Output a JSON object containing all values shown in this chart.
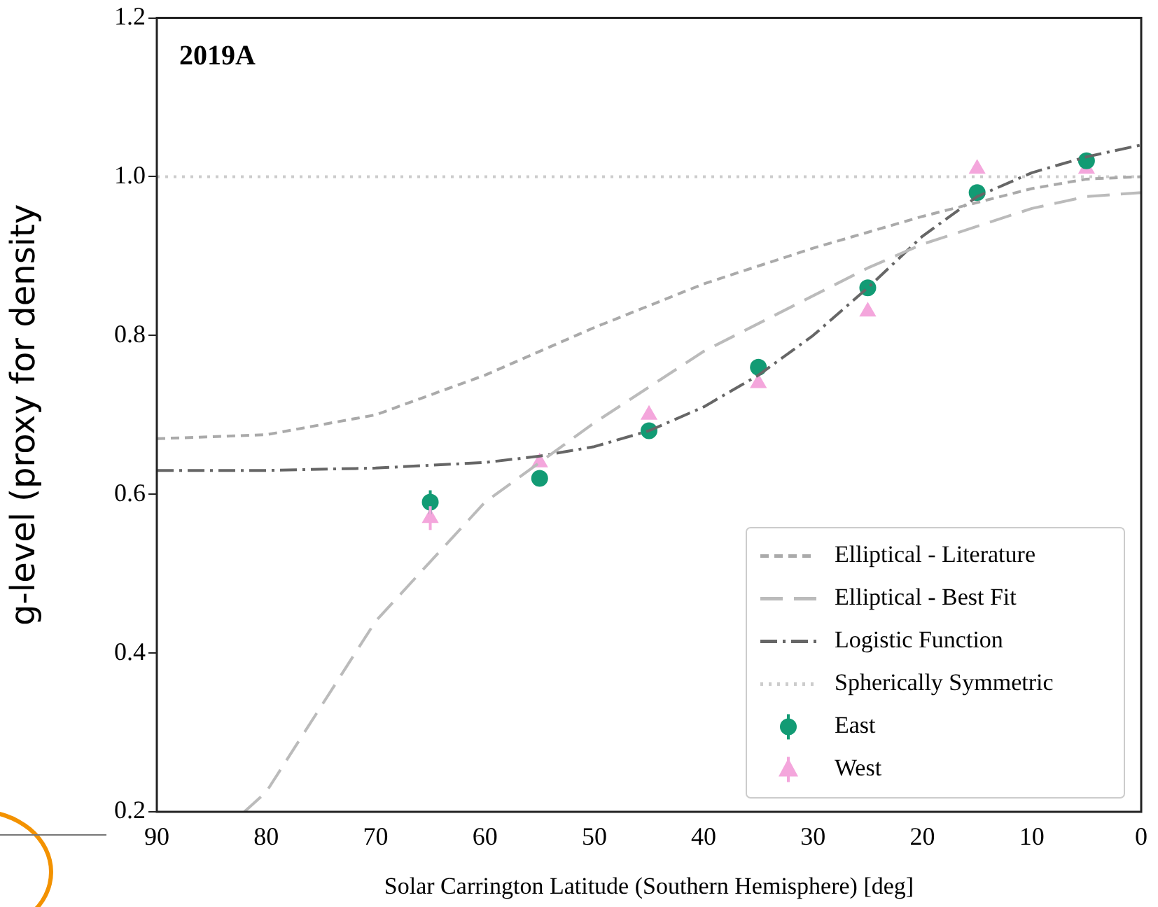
{
  "chart_data": {
    "type": "line",
    "title": "2019A",
    "xlabel": "Solar Carrington Latitude (Southern Hemisphere) [deg]",
    "ylabel": "g-level (proxy for density",
    "xlim": [
      90,
      0
    ],
    "xticks": [
      90,
      80,
      70,
      60,
      50,
      40,
      30,
      20,
      10,
      0
    ],
    "ylim": [
      0.2,
      1.2
    ],
    "yticks": [
      0.2,
      0.4,
      0.6,
      0.8,
      {
        "value": 1,
        "label": "1.0"
      },
      1.2
    ],
    "grid": false,
    "legend": "bottom right",
    "series": [
      {
        "name": "Elliptical - Literature",
        "type": "line",
        "color": "#aaaaaa",
        "line_style": "dashed",
        "marker": "none",
        "x": [
          90,
          80,
          70,
          60,
          50,
          40,
          30,
          20,
          10,
          5,
          0
        ],
        "values": [
          0.67,
          0.675,
          0.7,
          0.75,
          0.81,
          0.865,
          0.91,
          0.95,
          0.985,
          0.997,
          1.0
        ]
      },
      {
        "name": "Elliptical - Best Fit",
        "type": "line",
        "color": "#bbbbbb",
        "line_style": "longdash",
        "marker": "none",
        "x": [
          82,
          80,
          70,
          60,
          50,
          40,
          30,
          25,
          20,
          10,
          5,
          0
        ],
        "values": [
          0.2,
          0.225,
          0.44,
          0.59,
          0.69,
          0.78,
          0.85,
          0.885,
          0.915,
          0.96,
          0.975,
          0.98
        ]
      },
      {
        "name": "Logistic Function",
        "type": "line",
        "color": "#666666",
        "line_style": "dashdot",
        "marker": "none",
        "x": [
          90,
          80,
          70,
          60,
          55,
          50,
          45,
          40,
          35,
          30,
          25,
          20,
          15,
          10,
          5,
          0
        ],
        "values": [
          0.63,
          0.63,
          0.633,
          0.64,
          0.648,
          0.66,
          0.68,
          0.71,
          0.75,
          0.8,
          0.86,
          0.925,
          0.975,
          1.005,
          1.025,
          1.04
        ]
      },
      {
        "name": "Spherically Symmetric",
        "type": "line",
        "color": "#cccccc",
        "line_style": "dotted",
        "marker": "none",
        "x": [
          90,
          0
        ],
        "values": [
          1.0,
          1.0
        ]
      },
      {
        "name": "East",
        "type": "scatter",
        "color": "#129b74",
        "marker": "circle",
        "x": [
          65,
          55,
          45,
          35,
          25,
          15,
          5
        ],
        "values": [
          0.59,
          0.62,
          0.68,
          0.76,
          0.86,
          0.98,
          1.02
        ],
        "errors": [
          0.015,
          null,
          null,
          null,
          null,
          null,
          null
        ]
      },
      {
        "name": "West",
        "type": "scatter",
        "color": "#f4a6dc",
        "marker": "triangle",
        "x": [
          65,
          55,
          45,
          35,
          25,
          15,
          5
        ],
        "values": [
          0.57,
          0.64,
          0.7,
          0.74,
          0.83,
          1.01,
          1.01
        ],
        "errors": [
          0.015,
          null,
          null,
          null,
          null,
          null,
          null
        ]
      }
    ]
  }
}
